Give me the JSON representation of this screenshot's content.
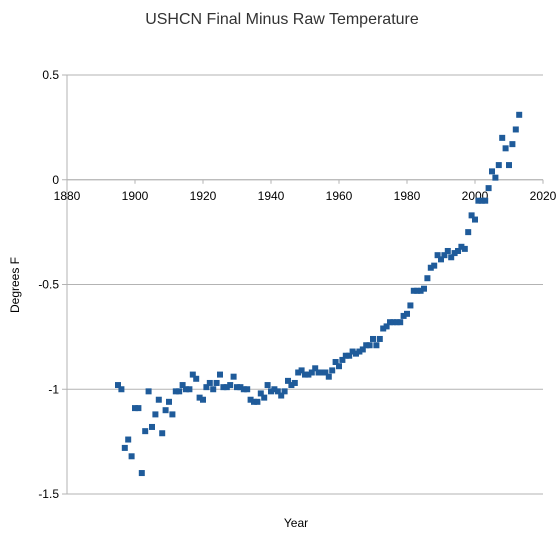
{
  "chart_data": {
    "type": "scatter",
    "title": "USHCN Final Minus Raw Temperature",
    "xlabel": "Year",
    "ylabel": "Degrees F",
    "xlim": [
      1880,
      2020
    ],
    "ylim": [
      -1.5,
      0.5
    ],
    "x_ticks": [
      {
        "value": 1880,
        "label": "1880"
      },
      {
        "value": 1900,
        "label": "1900"
      },
      {
        "value": 1920,
        "label": "1920"
      },
      {
        "value": 1940,
        "label": "1940"
      },
      {
        "value": 1960,
        "label": "1960"
      },
      {
        "value": 1980,
        "label": "1980"
      },
      {
        "value": 2000,
        "label": "2000"
      },
      {
        "value": 2020,
        "label": "2020"
      }
    ],
    "y_ticks": [
      {
        "value": 0.5,
        "label": "0.5"
      },
      {
        "value": 0,
        "label": "0"
      },
      {
        "value": -0.5,
        "label": "-0.5"
      },
      {
        "value": -1,
        "label": "-1"
      },
      {
        "value": -1.5,
        "label": "-1.5"
      }
    ],
    "grid": "horizontal",
    "legend": "none",
    "marker_color": "#1f5b9a",
    "x": [
      1895,
      1896,
      1897,
      1898,
      1899,
      1900,
      1901,
      1902,
      1903,
      1904,
      1905,
      1906,
      1907,
      1908,
      1909,
      1910,
      1911,
      1912,
      1913,
      1914,
      1915,
      1916,
      1917,
      1918,
      1919,
      1920,
      1921,
      1922,
      1923,
      1924,
      1925,
      1926,
      1927,
      1928,
      1929,
      1930,
      1931,
      1932,
      1933,
      1934,
      1935,
      1936,
      1937,
      1938,
      1939,
      1940,
      1941,
      1942,
      1943,
      1944,
      1945,
      1946,
      1947,
      1948,
      1949,
      1950,
      1951,
      1952,
      1953,
      1954,
      1955,
      1956,
      1957,
      1958,
      1959,
      1960,
      1961,
      1962,
      1963,
      1964,
      1965,
      1966,
      1967,
      1968,
      1969,
      1970,
      1971,
      1972,
      1973,
      1974,
      1975,
      1976,
      1977,
      1978,
      1979,
      1980,
      1981,
      1982,
      1983,
      1984,
      1985,
      1986,
      1987,
      1988,
      1989,
      1990,
      1991,
      1992,
      1993,
      1994,
      1995,
      1996,
      1997,
      1998,
      1999,
      2000,
      2001,
      2002,
      2003,
      2004,
      2005,
      2006,
      2007,
      2008,
      2009,
      2010,
      2011,
      2012,
      2013
    ],
    "y": [
      -0.98,
      -1.0,
      -1.28,
      -1.24,
      -1.32,
      -1.09,
      -1.09,
      -1.4,
      -1.2,
      -1.01,
      -1.18,
      -1.12,
      -1.05,
      -1.21,
      -1.1,
      -1.06,
      -1.12,
      -1.01,
      -1.01,
      -0.98,
      -1.0,
      -1.0,
      -0.93,
      -0.95,
      -1.04,
      -1.05,
      -0.99,
      -0.97,
      -1.0,
      -0.97,
      -0.93,
      -0.99,
      -0.99,
      -0.98,
      -0.94,
      -0.99,
      -0.99,
      -1.0,
      -1.0,
      -1.05,
      -1.06,
      -1.06,
      -1.02,
      -1.04,
      -0.98,
      -1.01,
      -1.0,
      -1.01,
      -1.03,
      -1.01,
      -0.96,
      -0.98,
      -0.97,
      -0.92,
      -0.91,
      -0.93,
      -0.93,
      -0.92,
      -0.9,
      -0.92,
      -0.92,
      -0.92,
      -0.94,
      -0.91,
      -0.87,
      -0.89,
      -0.86,
      -0.84,
      -0.84,
      -0.82,
      -0.83,
      -0.82,
      -0.81,
      -0.79,
      -0.79,
      -0.76,
      -0.79,
      -0.76,
      -0.71,
      -0.7,
      -0.68,
      -0.68,
      -0.68,
      -0.68,
      -0.65,
      -0.64,
      -0.6,
      -0.53,
      -0.53,
      -0.53,
      -0.52,
      -0.47,
      -0.42,
      -0.41,
      -0.36,
      -0.38,
      -0.36,
      -0.34,
      -0.37,
      -0.35,
      -0.34,
      -0.32,
      -0.33,
      -0.25,
      -0.17,
      -0.19,
      -0.1,
      -0.1,
      -0.1,
      -0.04,
      0.04,
      0.01,
      0.07,
      0.2,
      0.15,
      0.07,
      0.17,
      0.24,
      0.31
    ]
  }
}
